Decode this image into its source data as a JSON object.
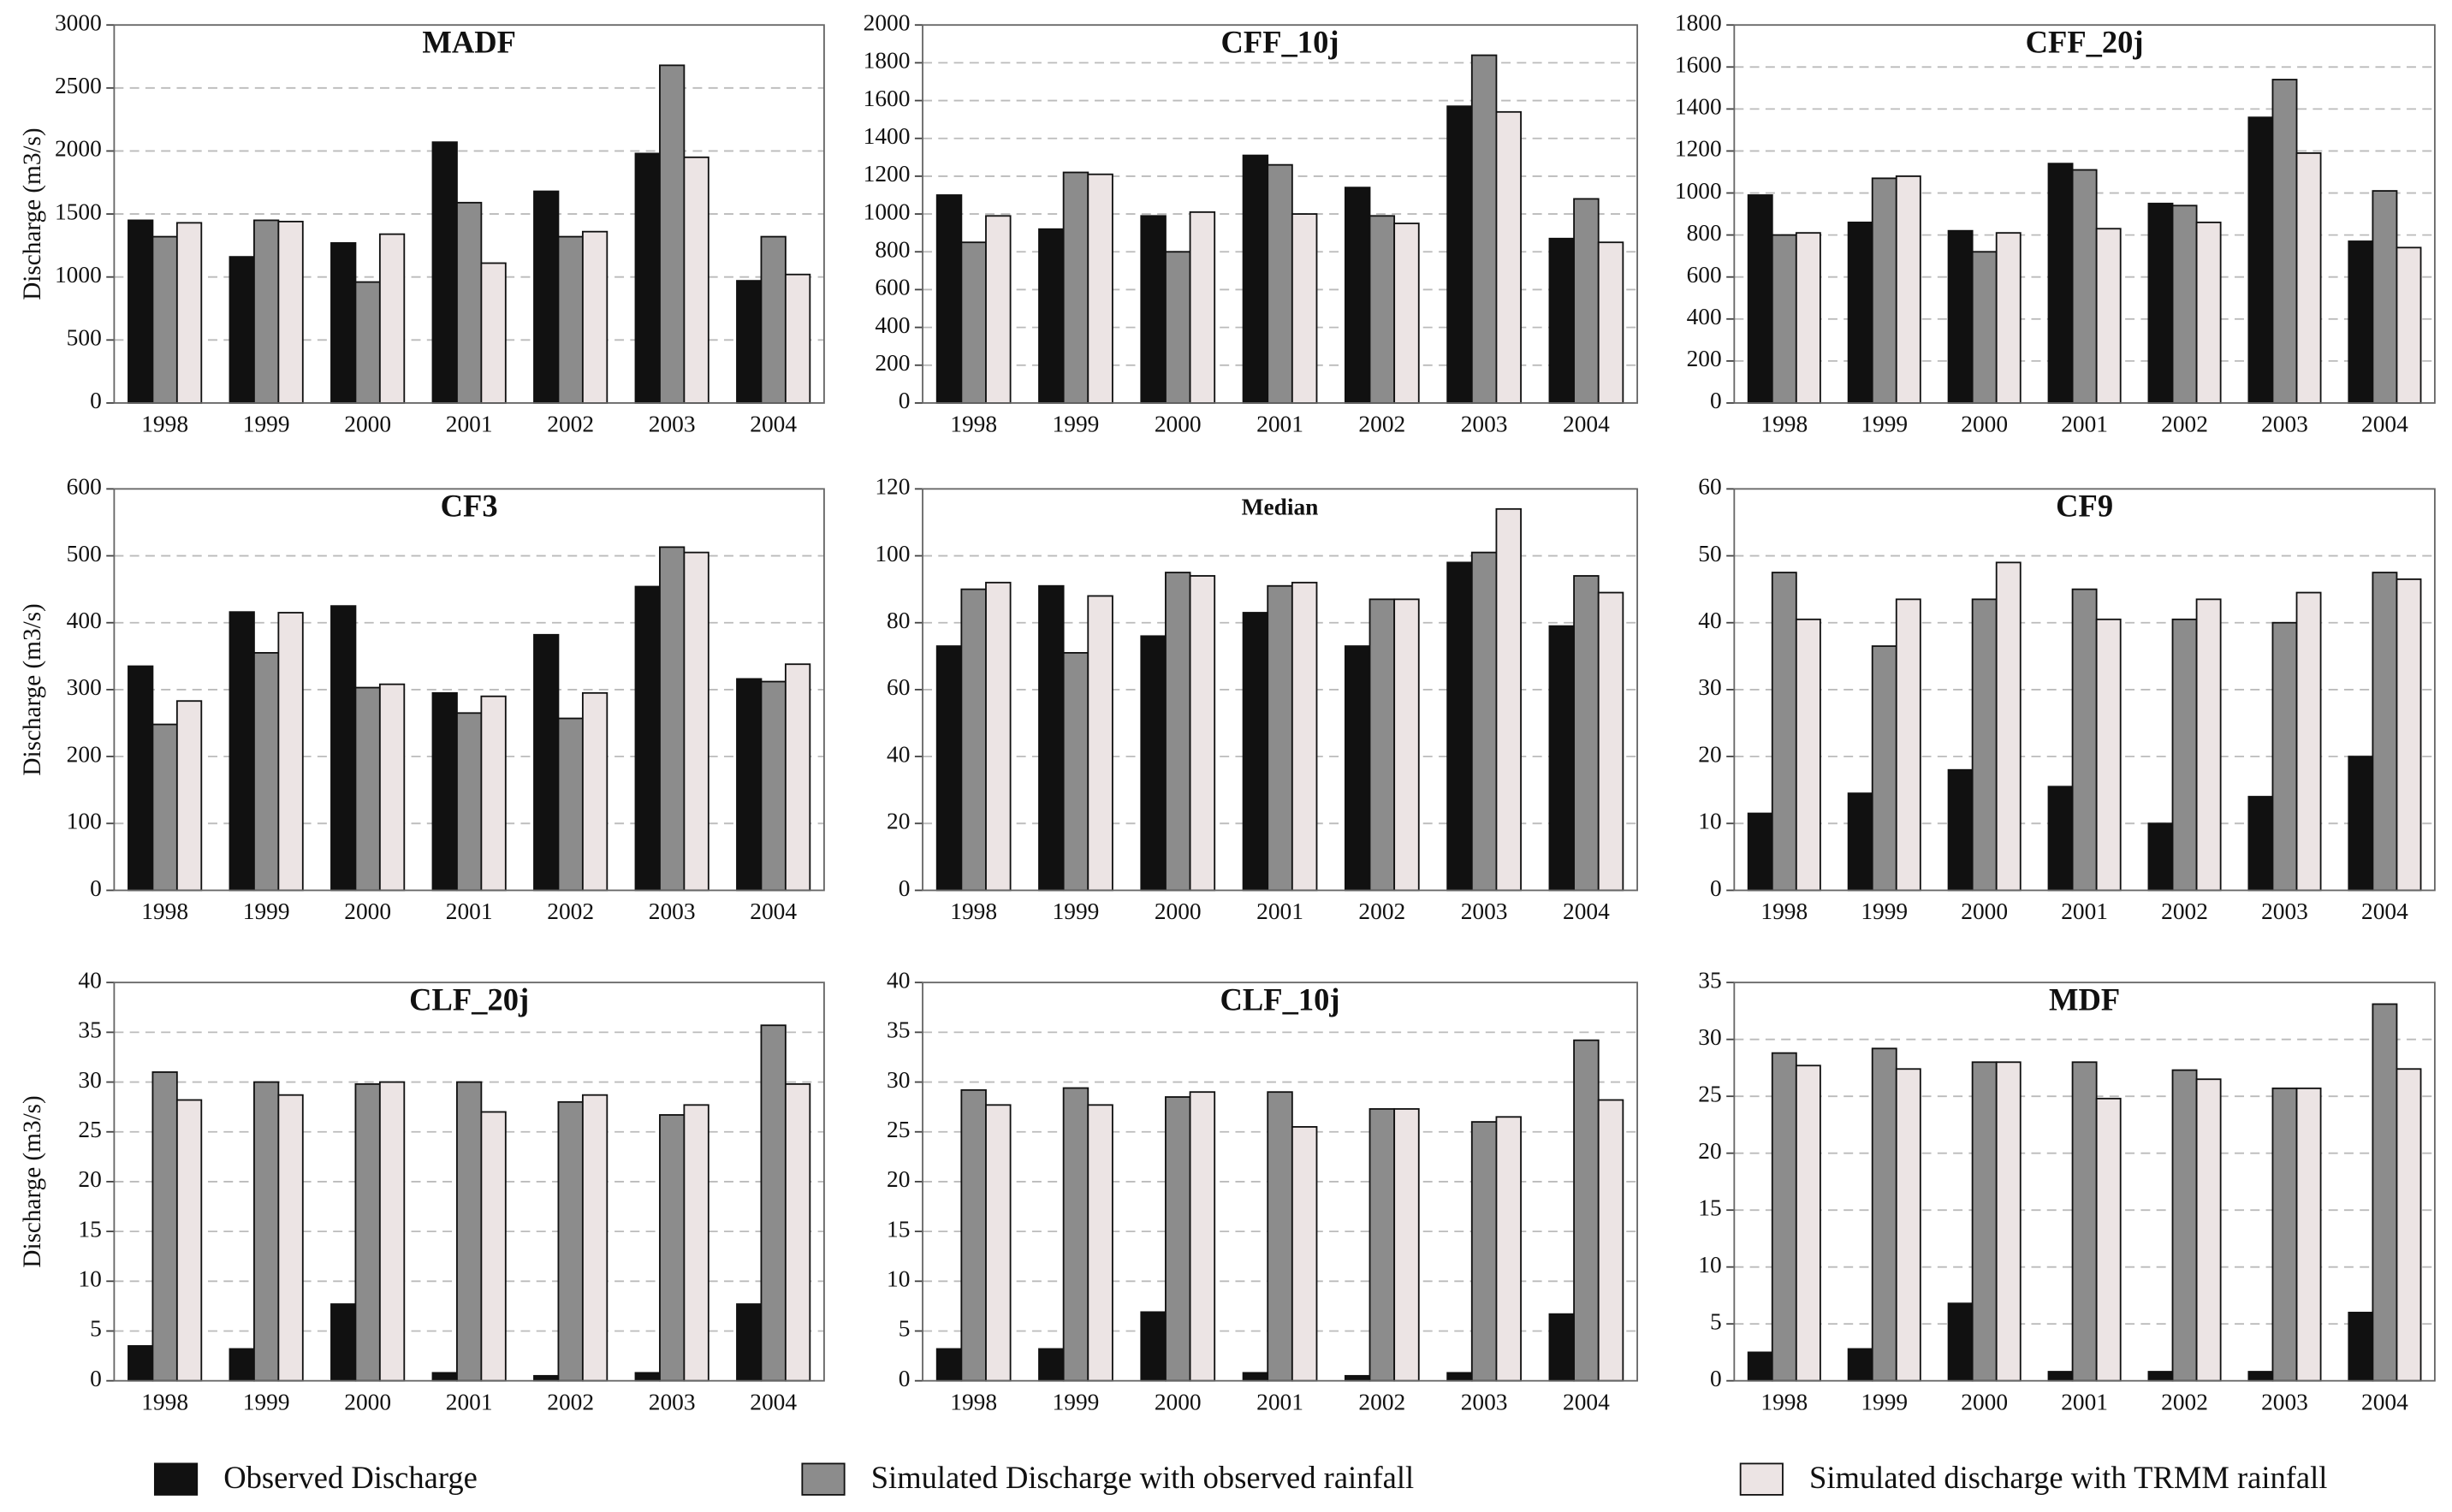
{
  "chart_data": [
    {
      "type": "bar",
      "title": "MADF",
      "y_label": "Discharge (m3/s)",
      "categories": [
        "1998",
        "1999",
        "2000",
        "2001",
        "2002",
        "2003",
        "2004"
      ],
      "ylim": [
        0,
        3000
      ],
      "yticks": [
        0,
        500,
        1000,
        1500,
        2000,
        2500,
        3000
      ],
      "grid": true,
      "series": [
        {
          "name": "Observed Discharge",
          "color": "#111111",
          "values": [
            1450,
            1160,
            1270,
            2070,
            1680,
            1980,
            970
          ]
        },
        {
          "name": "Simulated Discharge with observed rainfall",
          "color": "#8c8c8c",
          "values": [
            1320,
            1450,
            960,
            1590,
            1320,
            2680,
            1320
          ]
        },
        {
          "name": "Simulated discharge with TRMM rainfall",
          "color": "#ece4e4",
          "values": [
            1430,
            1440,
            1340,
            1110,
            1360,
            1950,
            1020
          ]
        }
      ]
    },
    {
      "type": "bar",
      "title": "CFF_10j",
      "categories": [
        "1998",
        "1999",
        "2000",
        "2001",
        "2002",
        "2003",
        "2004"
      ],
      "ylim": [
        0,
        2000
      ],
      "yticks": [
        0,
        200,
        400,
        600,
        800,
        1000,
        1200,
        1400,
        1600,
        1800,
        2000
      ],
      "grid": true,
      "series": [
        {
          "values": [
            1100,
            920,
            990,
            1310,
            1140,
            1570,
            870
          ]
        },
        {
          "values": [
            850,
            1220,
            800,
            1260,
            990,
            1840,
            1080
          ]
        },
        {
          "values": [
            990,
            1210,
            1010,
            1000,
            950,
            1540,
            850
          ]
        }
      ]
    },
    {
      "type": "bar",
      "title": "CFF_20j",
      "categories": [
        "1998",
        "1999",
        "2000",
        "2001",
        "2002",
        "2003",
        "2004"
      ],
      "ylim": [
        0,
        1800
      ],
      "yticks": [
        0,
        200,
        400,
        600,
        800,
        1000,
        1200,
        1400,
        1600,
        1800
      ],
      "grid": true,
      "series": [
        {
          "values": [
            990,
            860,
            820,
            1140,
            950,
            1360,
            770
          ]
        },
        {
          "values": [
            800,
            1070,
            720,
            1110,
            940,
            1540,
            1010
          ]
        },
        {
          "values": [
            810,
            1080,
            810,
            830,
            860,
            1190,
            740
          ]
        }
      ]
    },
    {
      "type": "bar",
      "title": "CF3",
      "y_label": "Discharge (m3/s)",
      "categories": [
        "1998",
        "1999",
        "2000",
        "2001",
        "2002",
        "2003",
        "2004"
      ],
      "ylim": [
        0,
        600
      ],
      "yticks": [
        0,
        100,
        200,
        300,
        400,
        500,
        600
      ],
      "grid": true,
      "series": [
        {
          "values": [
            335,
            416,
            425,
            295,
            382,
            454,
            316
          ]
        },
        {
          "values": [
            248,
            355,
            303,
            265,
            257,
            513,
            312
          ]
        },
        {
          "values": [
            283,
            415,
            308,
            290,
            295,
            505,
            338
          ]
        }
      ]
    },
    {
      "type": "bar",
      "title": "Median",
      "categories": [
        "1998",
        "1999",
        "2000",
        "2001",
        "2002",
        "2003",
        "2004"
      ],
      "ylim": [
        0,
        120
      ],
      "yticks": [
        0,
        20,
        40,
        60,
        80,
        100,
        120
      ],
      "grid": true,
      "series": [
        {
          "values": [
            73,
            91,
            76,
            83,
            73,
            98,
            79
          ]
        },
        {
          "values": [
            90,
            71,
            95,
            91,
            87,
            101,
            94
          ]
        },
        {
          "values": [
            92,
            88,
            94,
            92,
            87,
            114,
            89
          ]
        }
      ]
    },
    {
      "type": "bar",
      "title": "CF9",
      "categories": [
        "1998",
        "1999",
        "2000",
        "2001",
        "2002",
        "2003",
        "2004"
      ],
      "ylim": [
        0,
        60
      ],
      "yticks": [
        0,
        10,
        20,
        30,
        40,
        50,
        60
      ],
      "grid": true,
      "series": [
        {
          "values": [
            11.5,
            14.5,
            18,
            15.5,
            10,
            14,
            20
          ]
        },
        {
          "values": [
            47.5,
            36.5,
            43.5,
            45,
            40.5,
            40,
            47.5
          ]
        },
        {
          "values": [
            40.5,
            43.5,
            49,
            40.5,
            43.5,
            44.5,
            46.5
          ]
        }
      ]
    },
    {
      "type": "bar",
      "title": "CLF_20j",
      "y_label": "Discharge (m3/s)",
      "categories": [
        "1998",
        "1999",
        "2000",
        "2001",
        "2002",
        "2003",
        "2004"
      ],
      "ylim": [
        0,
        40
      ],
      "yticks": [
        0,
        5,
        10,
        15,
        20,
        25,
        30,
        35,
        40
      ],
      "grid": true,
      "series": [
        {
          "values": [
            3.5,
            3.2,
            7.7,
            0.8,
            0.5,
            0.8,
            7.7
          ]
        },
        {
          "values": [
            31,
            30,
            29.8,
            30,
            28,
            26.7,
            35.7
          ]
        },
        {
          "values": [
            28.2,
            28.7,
            30,
            27,
            28.7,
            27.7,
            29.8
          ]
        }
      ]
    },
    {
      "type": "bar",
      "title": "CLF_10j",
      "categories": [
        "1998",
        "1999",
        "2000",
        "2001",
        "2002",
        "2003",
        "2004"
      ],
      "ylim": [
        0,
        40
      ],
      "yticks": [
        0,
        5,
        10,
        15,
        20,
        25,
        30,
        35,
        40
      ],
      "grid": true,
      "series": [
        {
          "values": [
            3.2,
            3.2,
            6.9,
            0.8,
            0.5,
            0.8,
            6.7
          ]
        },
        {
          "values": [
            29.2,
            29.4,
            28.5,
            29,
            27.3,
            26,
            34.2
          ]
        },
        {
          "values": [
            27.7,
            27.7,
            29,
            25.5,
            27.3,
            26.5,
            28.2
          ]
        }
      ]
    },
    {
      "type": "bar",
      "title": "MDF",
      "categories": [
        "1998",
        "1999",
        "2000",
        "2001",
        "2002",
        "2003",
        "2004"
      ],
      "ylim": [
        0,
        35
      ],
      "yticks": [
        0,
        5,
        10,
        15,
        20,
        25,
        30,
        35
      ],
      "grid": true,
      "series": [
        {
          "values": [
            2.5,
            2.8,
            6.8,
            0.8,
            0.8,
            0.8,
            6
          ]
        },
        {
          "values": [
            28.8,
            29.2,
            28,
            28,
            27.3,
            25.7,
            33.1
          ]
        },
        {
          "values": [
            27.7,
            27.4,
            28,
            24.8,
            26.5,
            25.7,
            27.4
          ]
        }
      ]
    }
  ]
}
